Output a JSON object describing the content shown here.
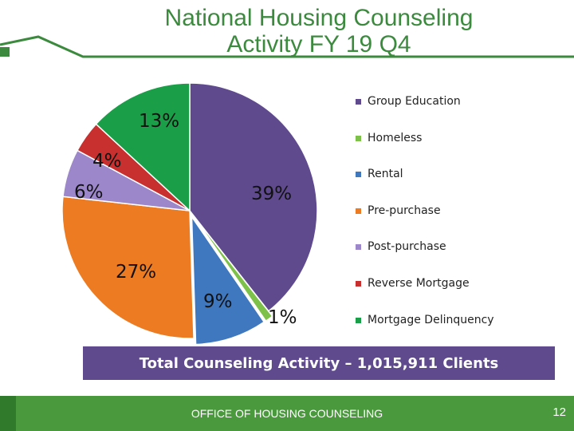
{
  "header": {
    "title_line1": "National Housing Counseling",
    "title_line2": "Activity FY 19 Q4"
  },
  "chart_data": {
    "type": "pie",
    "title": "National Housing Counseling Activity FY 19 Q4",
    "categories": [
      "Group Education",
      "Homeless",
      "Rental",
      "Pre-purchase",
      "Post-purchase",
      "Reverse Mortgage",
      "Mortgage Delinquency"
    ],
    "values": [
      39,
      1,
      9,
      27,
      6,
      4,
      13
    ],
    "labels": [
      "39%",
      "1%",
      "9%",
      "27%",
      "6%",
      "4%",
      "13%"
    ],
    "colors": [
      "#5e4a8c",
      "#7ec14a",
      "#3f78bf",
      "#ec7b22",
      "#9b87c9",
      "#c8302f",
      "#1a9e48"
    ],
    "legend_position": "right"
  },
  "total": {
    "text": "Total Counseling Activity – 1,015,911 Clients",
    "bar_color": "#5e4a8c"
  },
  "footer": {
    "office": "OFFICE OF HOUSING COUNSELING",
    "page_number": "12",
    "color": "#4a9a3d"
  },
  "icons": {
    "house": "house-outline-icon"
  }
}
